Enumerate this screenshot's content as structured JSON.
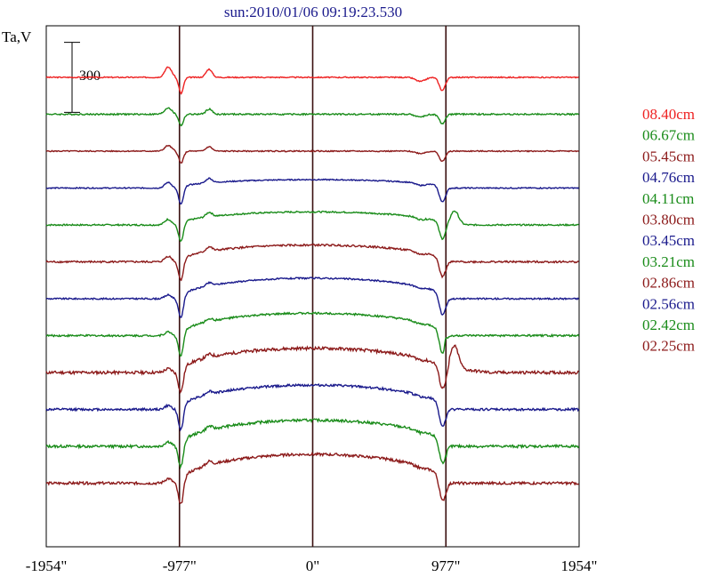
{
  "chart_data": {
    "type": "line",
    "title": "sun:2010/01/06 09:19:23.530",
    "ylabel": "Ta,V",
    "xlim": [
      -1954,
      1954
    ],
    "x_ticks": [
      {
        "value": -1954,
        "label": "-1954\""
      },
      {
        "value": -977,
        "label": "-977\""
      },
      {
        "value": 0,
        "label": "0\""
      },
      {
        "value": 977,
        "label": "977\""
      },
      {
        "value": 1954,
        "label": "1954\""
      }
    ],
    "vertical_lines": [
      -977,
      0,
      977
    ],
    "scale_bar": {
      "value": 300,
      "label": "300"
    },
    "colors": {
      "red": "#ee2222",
      "green": "#1a8c1a",
      "maroon": "#8c1a1a",
      "blue": "#1a1a8c"
    },
    "series": [
      {
        "name": "08.40cm",
        "color": "#ee2222",
        "disk": 0,
        "limb_dip": 70,
        "limb_bump": 0,
        "noise": 3,
        "feature": 55,
        "spike": 0,
        "r_bright": 0
      },
      {
        "name": "06.67cm",
        "color": "#1a8c1a",
        "disk": 0,
        "limb_dip": 50,
        "limb_bump": 0,
        "noise": 4,
        "feature": 35,
        "spike": 0,
        "r_bright": 0
      },
      {
        "name": "05.45cm",
        "color": "#8c1a1a",
        "disk": 0,
        "limb_dip": 55,
        "limb_bump": 0,
        "noise": 3,
        "feature": 30,
        "spike": 0,
        "r_bright": 0
      },
      {
        "name": "04.76cm",
        "color": "#1a1a8c",
        "disk": 45,
        "limb_dip": 85,
        "limb_bump": 0,
        "noise": 3,
        "feature": 30,
        "spike": 0,
        "r_bright": 0
      },
      {
        "name": "04.11cm",
        "color": "#1a8c1a",
        "disk": 70,
        "limb_dip": 90,
        "limb_bump": 75,
        "noise": 4,
        "feature": 30,
        "spike": 0,
        "r_bright": 0
      },
      {
        "name": "03.80cm",
        "color": "#8c1a1a",
        "disk": 90,
        "limb_dip": 100,
        "limb_bump": 0,
        "noise": 5,
        "feature": 30,
        "spike": 0,
        "r_bright": 0
      },
      {
        "name": "03.45cm",
        "color": "#1a1a8c",
        "disk": 110,
        "limb_dip": 110,
        "limb_bump": 0,
        "noise": 4,
        "feature": 20,
        "spike": 0,
        "r_bright": 0
      },
      {
        "name": "03.21cm",
        "color": "#1a8c1a",
        "disk": 120,
        "limb_dip": 120,
        "limb_bump": 0,
        "noise": 5,
        "feature": 20,
        "spike": 40,
        "r_bright": 0
      },
      {
        "name": "02.86cm",
        "color": "#8c1a1a",
        "disk": 130,
        "limb_dip": 115,
        "limb_bump": 120,
        "noise": 8,
        "feature": 20,
        "spike": 0,
        "r_bright": 1
      },
      {
        "name": "02.56cm",
        "color": "#1a1a8c",
        "disk": 130,
        "limb_dip": 120,
        "limb_bump": 0,
        "noise": 6,
        "feature": 20,
        "spike": 0,
        "r_bright": 0
      },
      {
        "name": "02.42cm",
        "color": "#1a8c1a",
        "disk": 140,
        "limb_dip": 120,
        "limb_bump": 0,
        "noise": 7,
        "feature": 25,
        "spike": 0,
        "r_bright": 0
      },
      {
        "name": "02.25cm",
        "color": "#8c1a1a",
        "disk": 155,
        "limb_dip": 130,
        "limb_bump": 0,
        "noise": 7,
        "feature": 25,
        "spike": 0,
        "r_bright": 0
      }
    ]
  }
}
